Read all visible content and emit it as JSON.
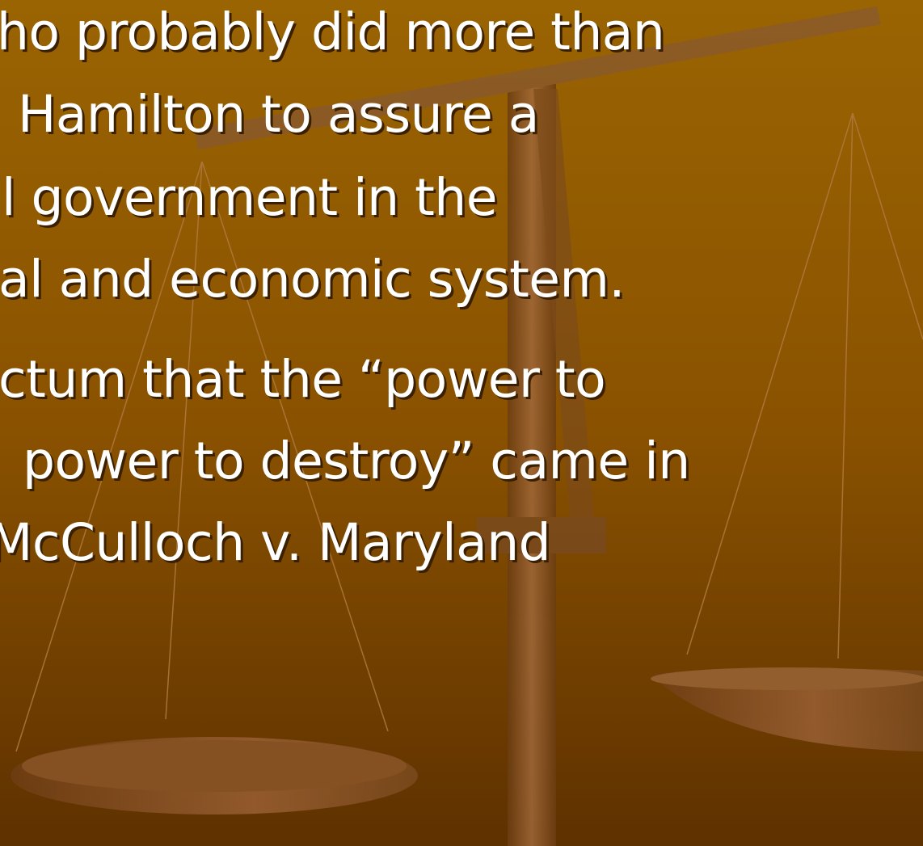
{
  "bullets": [
    {
      "lines": [
        "ho probably did more than",
        "Hamilton to assure a",
        "l government in the",
        "al and economic system."
      ]
    },
    {
      "lines": [
        "ctum that the “power to",
        "power to destroy” came in",
        "McCulloch v. Maryland"
      ]
    }
  ]
}
